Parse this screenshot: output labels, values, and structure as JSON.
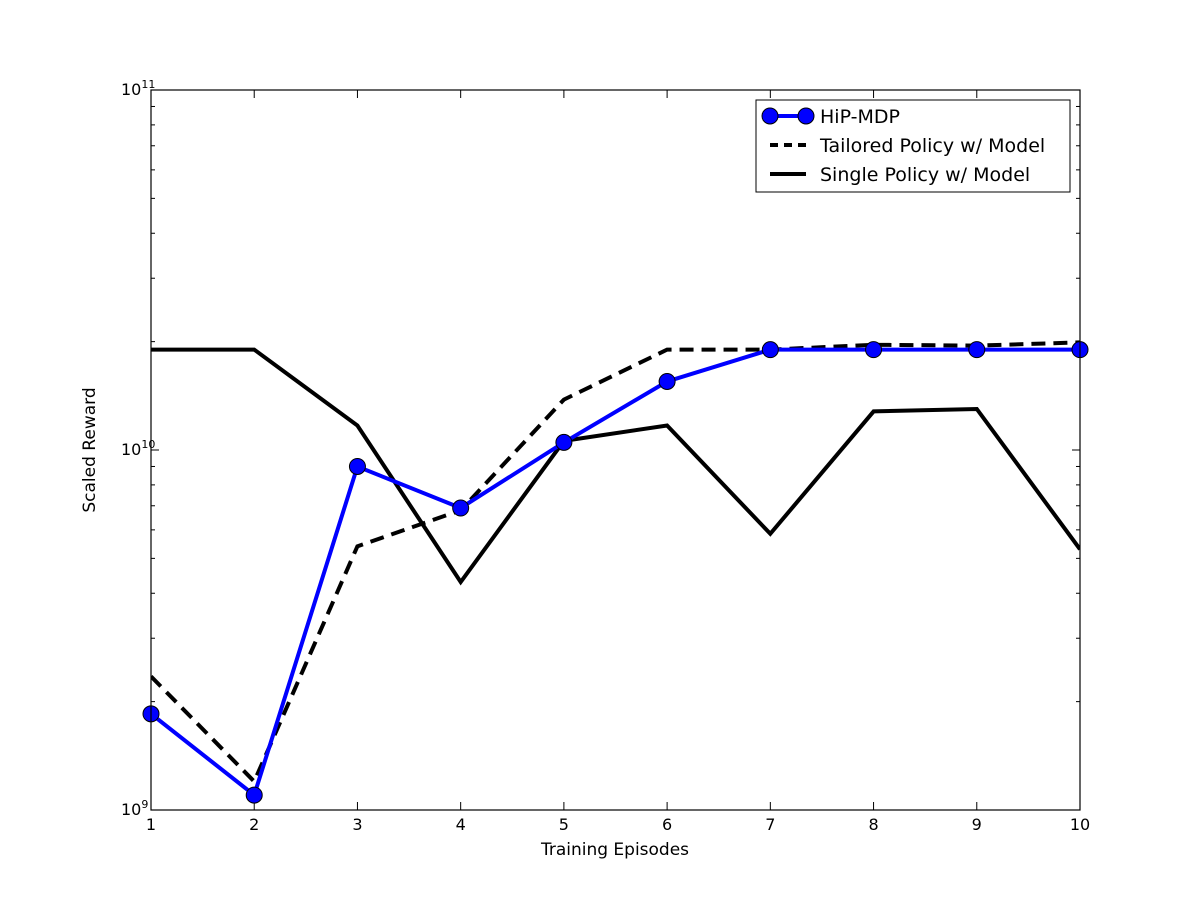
{
  "chart_data": {
    "type": "line",
    "xlabel": "Training Episodes",
    "ylabel": "Scaled Reward",
    "yscale": "log",
    "xlim": [
      1,
      10
    ],
    "ylim": [
      1000000000,
      100000000000
    ],
    "x_ticks": [
      "1",
      "2",
      "3",
      "4",
      "5",
      "6",
      "7",
      "8",
      "9",
      "10"
    ],
    "y_ticks": [
      {
        "base": "10",
        "exp": "9"
      },
      {
        "base": "10",
        "exp": "10"
      },
      {
        "base": "10",
        "exp": "11"
      }
    ],
    "grid": false,
    "legend_position": "top-right",
    "x": [
      1,
      2,
      3,
      4,
      5,
      6,
      7,
      8,
      9,
      10
    ],
    "series": [
      {
        "name": "HiP-MDP",
        "style": "solid-with-circle-markers",
        "color": "#0000ff",
        "values": [
          1850000000,
          1100000000,
          9000000000,
          6900000000,
          10500000000,
          15500000000,
          19000000000,
          19000000000,
          19000000000,
          19000000000
        ]
      },
      {
        "name": "Tailored Policy w/ Model",
        "style": "dashed",
        "color": "#000000",
        "values": [
          2350000000,
          1200000000,
          5400000000,
          6800000000,
          13800000000,
          19000000000,
          19000000000,
          19600000000,
          19500000000,
          19900000000
        ]
      },
      {
        "name": "Single Policy w/ Model",
        "style": "solid",
        "color": "#000000",
        "values": [
          19000000000,
          19000000000,
          11700000000,
          4300000000,
          10600000000,
          11700000000,
          5850000000,
          12800000000,
          13000000000,
          5300000000
        ]
      }
    ]
  }
}
